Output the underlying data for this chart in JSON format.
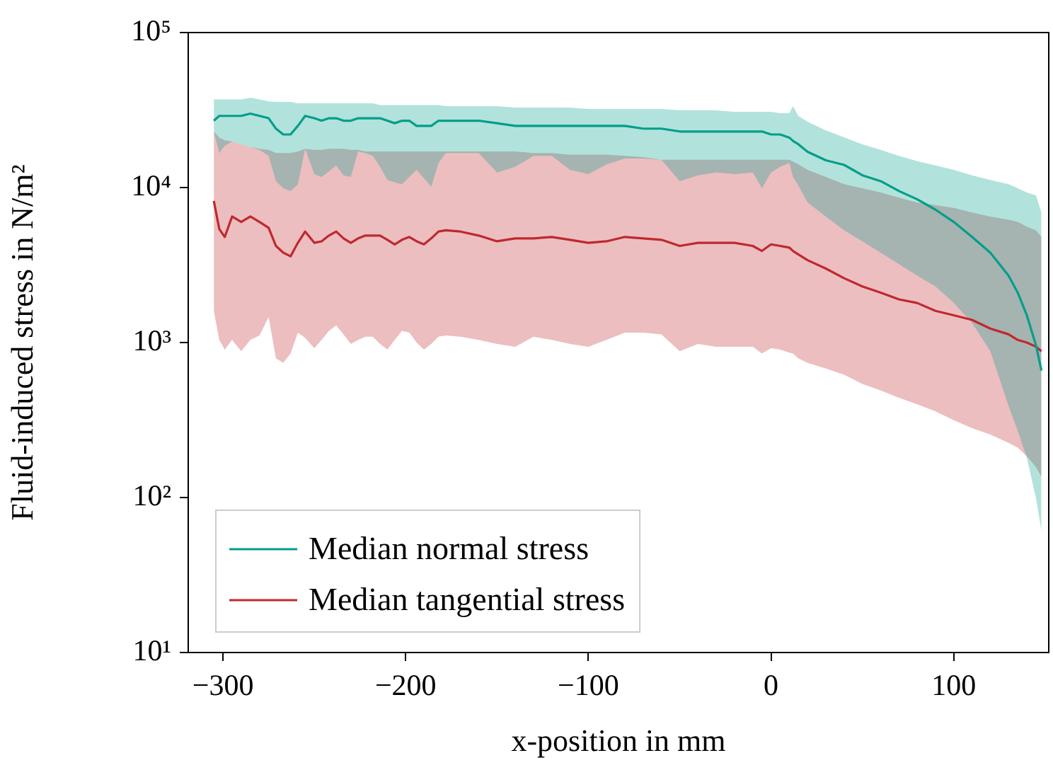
{
  "chart_data": {
    "type": "line",
    "xlabel": "x-position in mm",
    "ylabel": "Fluid-induced stress in N/m²",
    "log": "y",
    "grid": false,
    "legend": "bottom left",
    "xlim": [
      -319,
      152
    ],
    "xticks": [
      {
        "value": -300,
        "label": "−300"
      },
      {
        "value": -200,
        "label": "−200"
      },
      {
        "value": -100,
        "label": "−100"
      },
      0,
      100
    ],
    "ylim": [
      10,
      100000
    ],
    "yticks": [
      {
        "value": 10,
        "label": "10¹"
      },
      {
        "value": 100,
        "label": "10²"
      },
      {
        "value": 1000,
        "label": "10³"
      },
      {
        "value": 10000,
        "label": "10⁴"
      },
      {
        "value": 100000,
        "label": "10⁵"
      }
    ],
    "x": [
      -305,
      -302,
      -299,
      -295,
      -290,
      -285,
      -280,
      -275,
      -271,
      -267,
      -263,
      -259,
      -255,
      -250,
      -246,
      -242,
      -238,
      -234,
      -230,
      -226,
      -222,
      -218,
      -214,
      -210,
      -206,
      -202,
      -198,
      -194,
      -190,
      -186,
      -182,
      -178,
      -170,
      -160,
      -150,
      -140,
      -130,
      -120,
      -110,
      -100,
      -90,
      -80,
      -70,
      -60,
      -50,
      -40,
      -30,
      -20,
      -10,
      -5,
      0,
      5,
      10,
      12,
      15,
      20,
      30,
      40,
      50,
      60,
      70,
      80,
      90,
      100,
      110,
      120,
      130,
      135,
      140,
      145,
      148
    ],
    "series": [
      {
        "name": "Median normal stress",
        "color": "#009e8a",
        "values": [
          27000,
          29000,
          29000,
          29000,
          29000,
          30000,
          29000,
          28000,
          24000,
          22000,
          22000,
          25000,
          29000,
          28000,
          27000,
          28000,
          28000,
          27000,
          27000,
          28000,
          28000,
          28000,
          28000,
          27000,
          26000,
          27000,
          27000,
          25000,
          25000,
          25000,
          27000,
          27000,
          27000,
          27000,
          26000,
          25000,
          25000,
          25000,
          25000,
          25000,
          25000,
          25000,
          24000,
          24000,
          23000,
          23000,
          23000,
          23000,
          23000,
          23000,
          22000,
          22000,
          21000,
          20000,
          19000,
          17000,
          15000,
          14000,
          12000,
          11000,
          9500,
          8400,
          7200,
          6000,
          4800,
          3800,
          2700,
          2100,
          1500,
          960,
          660
        ],
        "upper": [
          37000,
          37000,
          37000,
          37000,
          37000,
          38000,
          37000,
          36000,
          35700,
          35700,
          35700,
          34900,
          34900,
          34900,
          34900,
          34900,
          34900,
          34900,
          34900,
          34900,
          34900,
          34900,
          34000,
          34000,
          34000,
          34000,
          34000,
          34000,
          34000,
          34000,
          34000,
          33500,
          33500,
          33500,
          33500,
          32800,
          32800,
          32800,
          32800,
          32100,
          32100,
          32100,
          32100,
          32100,
          31500,
          31500,
          31500,
          30800,
          30800,
          30800,
          30800,
          30200,
          30200,
          33500,
          28900,
          26600,
          23400,
          21100,
          19000,
          17500,
          16000,
          14800,
          13900,
          13000,
          12000,
          11200,
          10500,
          9900,
          9300,
          8900,
          6900
        ],
        "lower": [
          23000,
          16700,
          18600,
          19800,
          19000,
          18200,
          17500,
          16000,
          11000,
          9900,
          9500,
          10500,
          17800,
          12200,
          11700,
          12700,
          13900,
          12000,
          11700,
          17100,
          16700,
          16000,
          13600,
          11200,
          10800,
          10500,
          11700,
          13000,
          11500,
          10100,
          14400,
          16700,
          16700,
          16700,
          12500,
          13600,
          16000,
          16000,
          13000,
          12200,
          14100,
          15400,
          15400,
          15100,
          11000,
          12000,
          12500,
          12200,
          12500,
          9900,
          12500,
          13600,
          14400,
          11700,
          10300,
          8000,
          6500,
          5300,
          4500,
          3800,
          3200,
          2700,
          2300,
          1800,
          1340,
          880,
          390,
          270,
          180,
          99,
          61
        ]
      },
      {
        "name": "Median tangential stress",
        "color": "#c0282e",
        "values": [
          8200,
          5400,
          4800,
          6500,
          6000,
          6500,
          6000,
          5500,
          4200,
          3800,
          3600,
          4400,
          5200,
          4400,
          4500,
          4900,
          5200,
          4700,
          4400,
          4700,
          4900,
          4900,
          4900,
          4600,
          4300,
          4600,
          4800,
          4500,
          4300,
          4700,
          5200,
          5300,
          5200,
          4900,
          4500,
          4700,
          4700,
          4800,
          4600,
          4400,
          4500,
          4800,
          4700,
          4600,
          4200,
          4400,
          4400,
          4400,
          4200,
          3900,
          4300,
          4200,
          4100,
          3900,
          3700,
          3400,
          3000,
          2600,
          2300,
          2100,
          1900,
          1800,
          1600,
          1500,
          1400,
          1230,
          1130,
          1040,
          1000,
          940,
          880
        ],
        "upper": [
          23000,
          21000,
          20200,
          19800,
          19000,
          18200,
          17800,
          17500,
          16700,
          16700,
          16700,
          17100,
          17800,
          17500,
          17500,
          17800,
          17800,
          17800,
          17500,
          17500,
          17100,
          17100,
          17100,
          17100,
          17100,
          17100,
          17100,
          17100,
          17100,
          17100,
          17100,
          17100,
          17100,
          17100,
          17100,
          17100,
          16700,
          16700,
          16300,
          16300,
          16300,
          16000,
          15700,
          15100,
          15100,
          15100,
          15100,
          15100,
          15100,
          15100,
          15100,
          15100,
          15100,
          14700,
          14100,
          13000,
          11700,
          10500,
          9900,
          9300,
          8600,
          8000,
          7700,
          7400,
          6900,
          6500,
          6200,
          6000,
          5600,
          5300,
          4800
        ],
        "lower": [
          1600,
          1040,
          900,
          1040,
          880,
          1040,
          1110,
          1460,
          790,
          740,
          850,
          1160,
          1070,
          920,
          1040,
          1190,
          1290,
          1130,
          980,
          1040,
          1090,
          1090,
          980,
          900,
          1040,
          1190,
          1160,
          1000,
          900,
          980,
          1090,
          1110,
          1090,
          1040,
          980,
          940,
          1090,
          1040,
          980,
          940,
          1040,
          1160,
          1160,
          1130,
          880,
          980,
          940,
          940,
          940,
          850,
          920,
          900,
          860,
          850,
          790,
          740,
          680,
          620,
          540,
          490,
          440,
          400,
          360,
          315,
          280,
          255,
          225,
          210,
          185,
          157,
          136
        ]
      }
    ]
  }
}
